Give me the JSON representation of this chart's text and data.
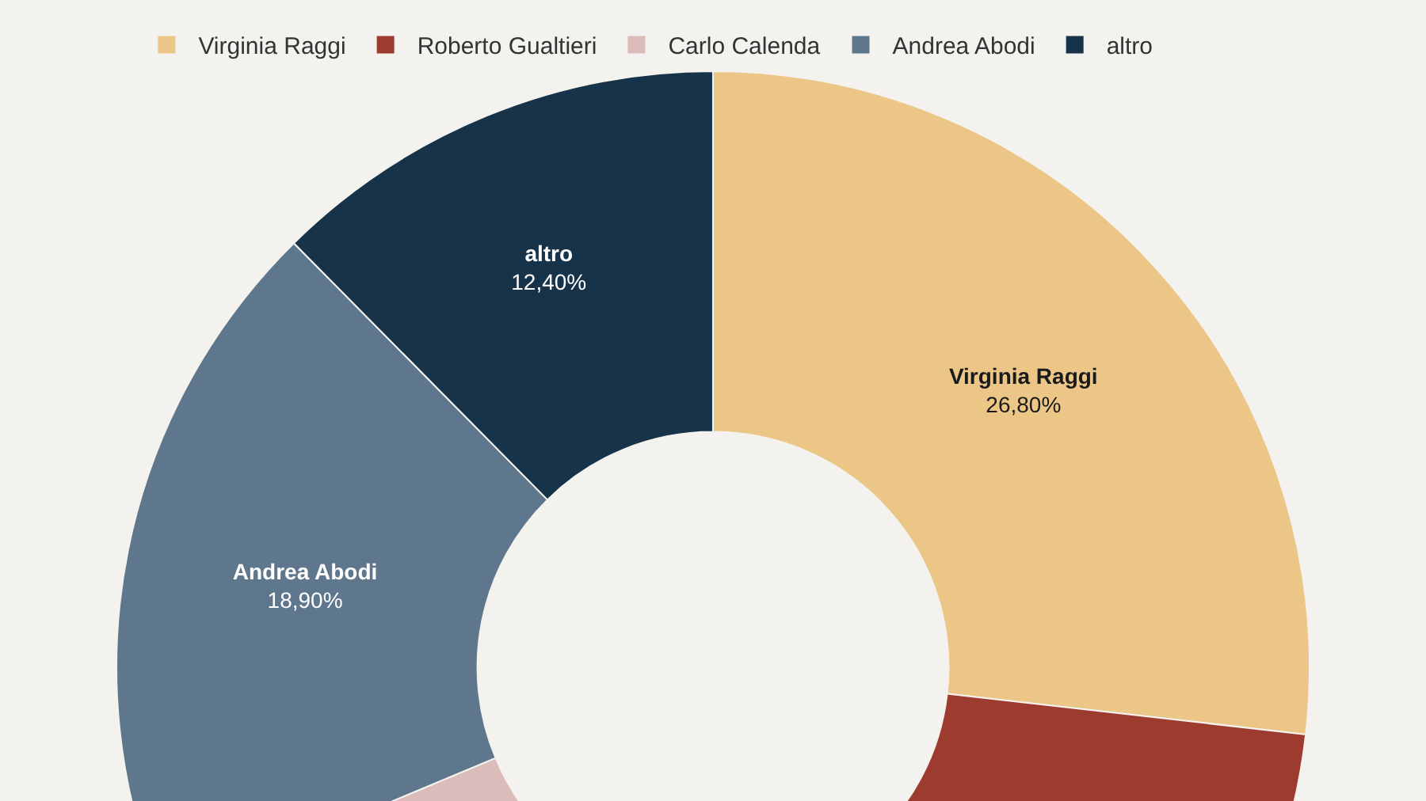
{
  "chart_data": {
    "type": "donut",
    "categories": [
      "Virginia Raggi",
      "Roberto Gualtieri",
      "Carlo Calenda",
      "Andrea Abodi",
      "altro"
    ],
    "values": [
      26.8,
      24.5,
      17.4,
      18.9,
      12.4
    ],
    "value_labels": [
      "26,80%",
      null,
      null,
      "18,90%",
      "12,40%"
    ],
    "colors": [
      "#ebc686",
      "#9e3b2f",
      "#dcbcbb",
      "#5f778c",
      "#17334a"
    ],
    "legend": "top left"
  }
}
